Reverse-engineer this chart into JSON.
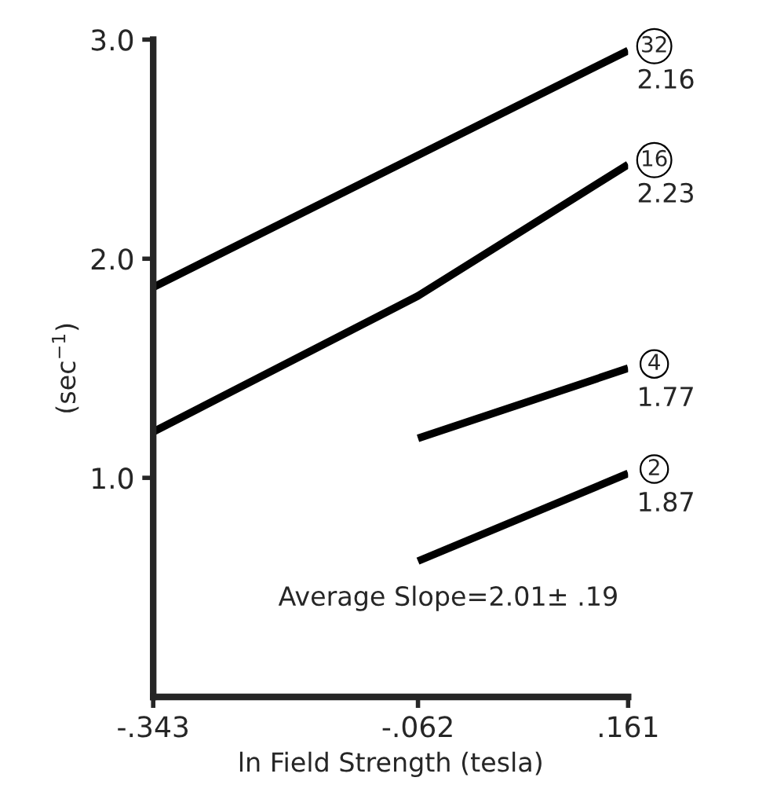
{
  "chart_data": {
    "type": "line",
    "xlabel": "ln Field Strength (tesla)",
    "ylabel": "(sec$^{−1}$)",
    "series": [
      {
        "name": "32",
        "color": "#000000",
        "x": [
          -0.343,
          0.161
        ],
        "values": [
          1.87,
          2.95
        ]
      },
      {
        "name": "16",
        "color": "#000000",
        "x": [
          -0.343,
          -0.062,
          0.161
        ],
        "values": [
          1.21,
          1.83,
          2.43
        ]
      },
      {
        "name": "4",
        "color": "#000000",
        "x": [
          -0.062,
          0.161
        ],
        "values": [
          1.18,
          1.5
        ]
      },
      {
        "name": "2",
        "color": "#000000",
        "x": [
          -0.062,
          0.161
        ],
        "values": [
          0.62,
          1.02
        ]
      }
    ],
    "annotations": [
      "2.16",
      "2.23",
      "1.77",
      "1.87",
      "Average Slope=2.01± .19"
    ],
    "xlim": [
      -0.343,
      0.161
    ],
    "ylim": [
      0,
      3.0
    ],
    "xticks": [
      {
        "value": -0.343,
        "label": "-.343"
      },
      {
        "value": -0.062,
        "label": "-.062"
      },
      {
        "value": 0.161,
        "label": ".161"
      }
    ],
    "yticks": [
      {
        "value": 1.0,
        "label": "1.0"
      },
      {
        "value": 2.0,
        "label": "2.0"
      },
      {
        "value": 3.0,
        "label": "3.0"
      }
    ],
    "grid": false,
    "legend": false,
    "marker": "none",
    "line_style": "solid"
  }
}
